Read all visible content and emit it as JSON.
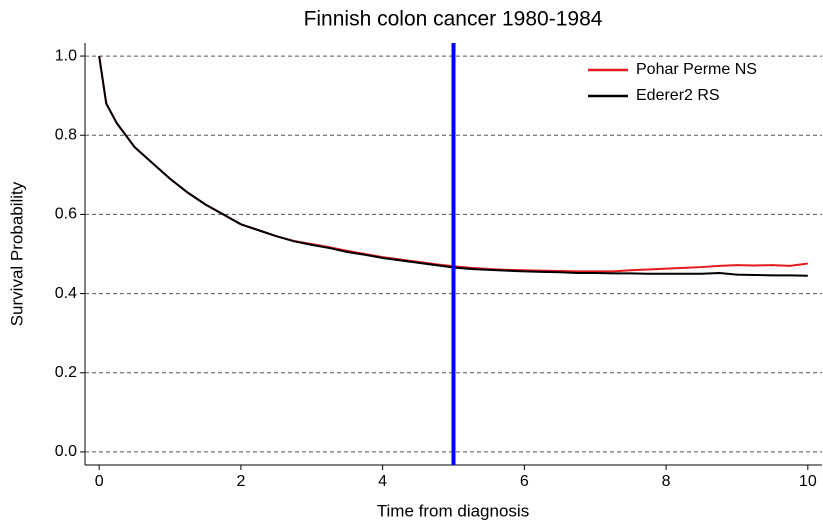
{
  "chart_data": {
    "type": "line",
    "title": "Finnish colon cancer 1980-1984",
    "xlabel": "Time from diagnosis",
    "ylabel": "Survival Probability",
    "x": [
      0,
      0.1,
      0.25,
      0.5,
      0.75,
      1,
      1.25,
      1.5,
      1.75,
      2,
      2.25,
      2.5,
      2.75,
      3,
      3.25,
      3.5,
      3.75,
      4,
      4.25,
      4.5,
      4.75,
      5,
      5.25,
      5.5,
      5.75,
      6,
      6.25,
      6.5,
      6.75,
      7,
      7.25,
      7.5,
      7.75,
      8,
      8.25,
      8.5,
      8.75,
      9,
      9.25,
      9.5,
      9.75,
      10
    ],
    "series": [
      {
        "name": "Pohar Perme NS",
        "color": "#e41a1c",
        "values": [
          1.0,
          0.88,
          0.83,
          0.77,
          0.73,
          0.69,
          0.655,
          0.625,
          0.6,
          0.575,
          0.56,
          0.545,
          0.533,
          0.525,
          0.517,
          0.508,
          0.5,
          0.492,
          0.486,
          0.48,
          0.474,
          0.469,
          0.465,
          0.462,
          0.46,
          0.459,
          0.458,
          0.457,
          0.456,
          0.456,
          0.456,
          0.459,
          0.461,
          0.463,
          0.465,
          0.467,
          0.47,
          0.472,
          0.471,
          0.472,
          0.47,
          0.476
        ]
      },
      {
        "name": "Ederer2 RS",
        "color": "#000000",
        "values": [
          1.0,
          0.88,
          0.83,
          0.77,
          0.73,
          0.69,
          0.655,
          0.625,
          0.6,
          0.575,
          0.56,
          0.545,
          0.532,
          0.523,
          0.515,
          0.505,
          0.498,
          0.49,
          0.484,
          0.478,
          0.472,
          0.466,
          0.462,
          0.46,
          0.458,
          0.456,
          0.455,
          0.454,
          0.452,
          0.452,
          0.451,
          0.451,
          0.45,
          0.45,
          0.45,
          0.45,
          0.452,
          0.448,
          0.447,
          0.446,
          0.446,
          0.445
        ]
      }
    ],
    "vline": 5,
    "vline_color": "#0000ff",
    "xlim": [
      -0.2,
      10.2
    ],
    "xticks": [
      0,
      2,
      4,
      6,
      8,
      10
    ],
    "ylim": [
      -0.033,
      1.033
    ],
    "yticks": [
      {
        "value": 0,
        "label": "0.0"
      },
      {
        "value": 0.2,
        "label": "0.2"
      },
      {
        "value": 0.4,
        "label": "0.4"
      },
      {
        "value": 0.6,
        "label": "0.6"
      },
      {
        "value": 0.8,
        "label": "0.8"
      },
      {
        "value": 1,
        "label": "1.0"
      }
    ],
    "grid": true,
    "legend": "upper right"
  }
}
